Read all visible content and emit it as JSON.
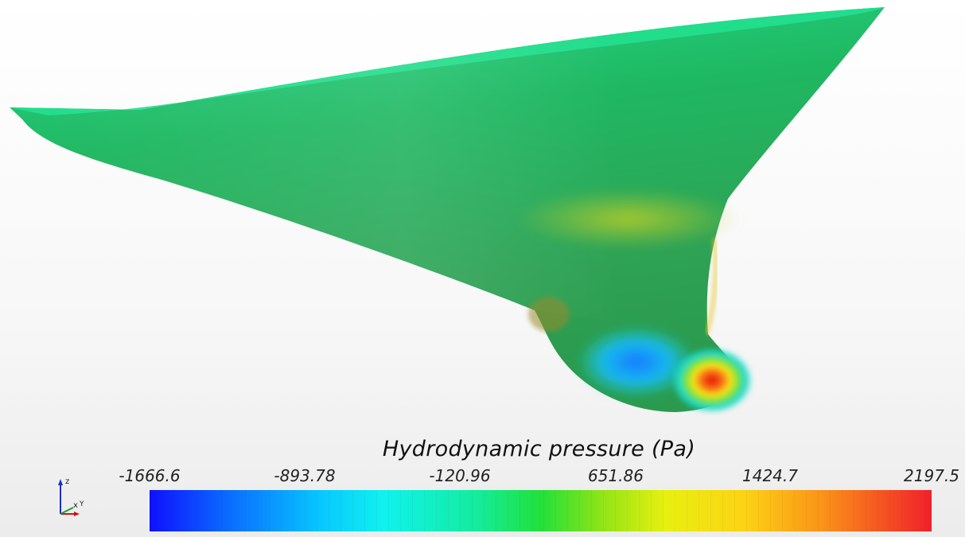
{
  "legend": {
    "title": "Hydrodynamic pressure (Pa)",
    "ticks": [
      "-1666.6",
      "-893.78",
      "-120.96",
      "651.86",
      "1424.7",
      "2197.5"
    ],
    "min": -1666.6,
    "max": 2197.5,
    "colormap": [
      "#1010ff",
      "#08c8ff",
      "#14ec9c",
      "#22e03a",
      "#e8f010",
      "#fb9318",
      "#f0202a"
    ]
  },
  "axes": {
    "z_label": "z",
    "x_label": "x",
    "y_label": "Y"
  },
  "colors": {
    "hull": "#2fb25a",
    "hull_light": "#26dc87",
    "background": "#f5f5f5"
  },
  "icons": [
    "axis-triad-icon"
  ]
}
